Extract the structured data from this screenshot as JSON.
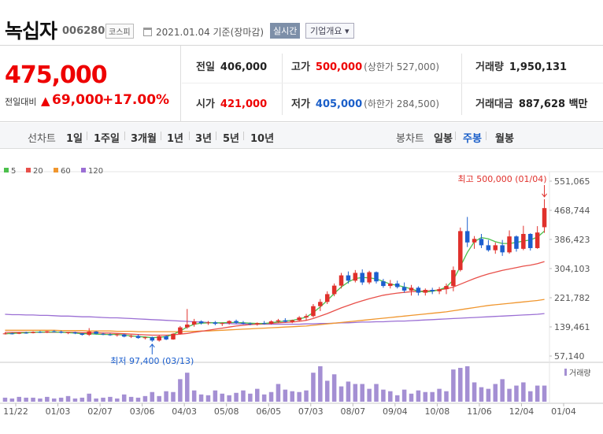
{
  "header": {
    "name": "녹십자",
    "code": "006280",
    "market": "코스피",
    "date": "2021.01.04 기준(장마감)",
    "realtime": "실시간",
    "company_info": "기업개요 ▾"
  },
  "summary": {
    "price": "475,000",
    "change_label": "전일대비",
    "change_arrow": "▲",
    "change_value": "69,000",
    "change_pct": "+17.00%",
    "prev_label": "전일",
    "prev_value": "406,000",
    "open_label": "시가",
    "open_value": "421,000",
    "high_label": "고가",
    "high_value": "500,000",
    "upper_limit": "(상한가 527,000)",
    "low_label": "저가",
    "low_value": "405,000",
    "lower_limit": "(하한가 284,500)",
    "volume_label": "거래량",
    "volume_value": "1,950,131",
    "amount_label": "거래대금",
    "amount_value": "887,628 백만"
  },
  "periods": {
    "line_label": "선차트",
    "line_items": [
      "1일",
      "1주일",
      "3개월",
      "1년",
      "3년",
      "5년",
      "10년"
    ],
    "candle_label": "봉차트",
    "candle_items": [
      "일봉",
      "주봉",
      "월봉"
    ],
    "selected": "주봉"
  },
  "colors": {
    "up": "#e0302b",
    "down": "#1c5fcf",
    "ma5": "#4cc04c",
    "ma20": "#e8504a",
    "ma60": "#f0962e",
    "ma120": "#9b6fd4",
    "volume": "#a48fd3"
  },
  "chart_data": {
    "type": "candlestick",
    "legend": [
      {
        "name": "5",
        "color": "#4cc04c"
      },
      {
        "name": "20",
        "color": "#e8504a"
      },
      {
        "name": "60",
        "color": "#f0962e"
      },
      {
        "name": "120",
        "color": "#9b6fd4"
      }
    ],
    "y_ticks": [
      "551,065",
      "468,744",
      "386,423",
      "304,103",
      "221,782",
      "139,461",
      "57,140"
    ],
    "ylim": [
      57140,
      551065
    ],
    "x_ticks": [
      "11/22",
      "01/03",
      "02/07",
      "03/06",
      "04/03",
      "05/08",
      "06/05",
      "07/03",
      "08/07",
      "09/04",
      "10/08",
      "11/06",
      "12/04",
      "01/04"
    ],
    "high_label": "최고 500,000 (01/04)",
    "low_label": "최저 97,400 (03/13)",
    "volume_label": "거래량",
    "candles": [
      [
        120000,
        124000,
        118000,
        121000
      ],
      [
        121000,
        123000,
        118000,
        120000
      ],
      [
        120000,
        125000,
        119000,
        123000
      ],
      [
        123000,
        126000,
        120000,
        122000
      ],
      [
        122000,
        127000,
        121000,
        125000
      ],
      [
        125000,
        128000,
        122000,
        124000
      ],
      [
        124000,
        128000,
        122000,
        127000
      ],
      [
        127000,
        130000,
        124000,
        126000
      ],
      [
        126000,
        129000,
        121000,
        123000
      ],
      [
        123000,
        125000,
        119000,
        124000
      ],
      [
        124000,
        126000,
        119000,
        121000
      ],
      [
        121000,
        122000,
        115000,
        117000
      ],
      [
        117000,
        136000,
        114000,
        126000
      ],
      [
        126000,
        128000,
        118000,
        120000
      ],
      [
        120000,
        123000,
        116000,
        118000
      ],
      [
        118000,
        121000,
        114000,
        116000
      ],
      [
        116000,
        119000,
        112000,
        118000
      ],
      [
        118000,
        120000,
        110000,
        112000
      ],
      [
        112000,
        117000,
        108000,
        114000
      ],
      [
        114000,
        118000,
        106000,
        108000
      ],
      [
        108000,
        112000,
        104000,
        110000
      ],
      [
        110000,
        112000,
        97400,
        101000
      ],
      [
        101000,
        116000,
        98000,
        113000
      ],
      [
        113000,
        115000,
        102000,
        104000
      ],
      [
        104000,
        122000,
        103000,
        120000
      ],
      [
        120000,
        142000,
        118000,
        138000
      ],
      [
        138000,
        190000,
        134000,
        146000
      ],
      [
        146000,
        162000,
        140000,
        155000
      ],
      [
        155000,
        158000,
        146000,
        150000
      ],
      [
        150000,
        156000,
        145000,
        152000
      ],
      [
        152000,
        156000,
        144000,
        148000
      ],
      [
        148000,
        152000,
        142000,
        150000
      ],
      [
        150000,
        158000,
        146000,
        156000
      ],
      [
        156000,
        160000,
        148000,
        151000
      ],
      [
        151000,
        156000,
        146000,
        149000
      ],
      [
        149000,
        152000,
        144000,
        147000
      ],
      [
        147000,
        152000,
        143000,
        150000
      ],
      [
        150000,
        156000,
        146000,
        148000
      ],
      [
        148000,
        158000,
        146000,
        155000
      ],
      [
        155000,
        162000,
        150000,
        158000
      ],
      [
        158000,
        164000,
        152000,
        154000
      ],
      [
        154000,
        160000,
        150000,
        158000
      ],
      [
        158000,
        170000,
        156000,
        166000
      ],
      [
        166000,
        176000,
        158000,
        170000
      ],
      [
        170000,
        204000,
        166000,
        198000
      ],
      [
        198000,
        218000,
        184000,
        210000
      ],
      [
        210000,
        240000,
        204000,
        232000
      ],
      [
        232000,
        262000,
        226000,
        256000
      ],
      [
        256000,
        292000,
        248000,
        285000
      ],
      [
        285000,
        296000,
        262000,
        270000
      ],
      [
        270000,
        300000,
        265000,
        292000
      ],
      [
        292000,
        302000,
        258000,
        265000
      ],
      [
        265000,
        298000,
        260000,
        294000
      ],
      [
        294000,
        296000,
        262000,
        268000
      ],
      [
        268000,
        275000,
        250000,
        255000
      ],
      [
        255000,
        272000,
        248000,
        262000
      ],
      [
        262000,
        270000,
        248000,
        252000
      ],
      [
        252000,
        265000,
        236000,
        242000
      ],
      [
        242000,
        258000,
        228000,
        250000
      ],
      [
        250000,
        254000,
        228000,
        236000
      ],
      [
        236000,
        248000,
        228000,
        244000
      ],
      [
        244000,
        250000,
        232000,
        240000
      ],
      [
        240000,
        252000,
        232000,
        246000
      ],
      [
        246000,
        262000,
        232000,
        255000
      ],
      [
        255000,
        310000,
        240000,
        300000
      ],
      [
        300000,
        420000,
        296000,
        410000
      ],
      [
        410000,
        450000,
        365000,
        378000
      ],
      [
        378000,
        396000,
        360000,
        388000
      ],
      [
        388000,
        402000,
        362000,
        370000
      ],
      [
        370000,
        385000,
        352000,
        356000
      ],
      [
        356000,
        378000,
        346000,
        370000
      ],
      [
        370000,
        385000,
        340000,
        350000
      ],
      [
        350000,
        412000,
        346000,
        395000
      ],
      [
        395000,
        398000,
        352000,
        360000
      ],
      [
        360000,
        425000,
        356000,
        402000
      ],
      [
        402000,
        404000,
        355000,
        362000
      ],
      [
        362000,
        424000,
        360000,
        406000
      ],
      [
        421000,
        500000,
        405000,
        475000
      ]
    ],
    "ma5": [
      120000,
      121000,
      122000,
      123000,
      124000,
      125000,
      125000,
      125000,
      124000,
      123000,
      122000,
      120000,
      120000,
      119000,
      118000,
      118000,
      118000,
      116000,
      114000,
      112000,
      111000,
      109000,
      110000,
      112000,
      118000,
      128000,
      139000,
      147000,
      150000,
      151000,
      151000,
      151000,
      152000,
      152000,
      151000,
      150000,
      149000,
      149000,
      151000,
      154000,
      156000,
      158000,
      162000,
      167000,
      180000,
      196000,
      214000,
      234000,
      252000,
      266000,
      276000,
      279000,
      278000,
      275000,
      268000,
      260000,
      257000,
      252000,
      247000,
      240000,
      238000,
      240000,
      244000,
      252000,
      272000,
      310000,
      350000,
      380000,
      392000,
      388000,
      380000,
      375000,
      375000,
      378000,
      382000,
      385000,
      393000,
      410000
    ],
    "ma20": [
      124000,
      124000,
      124000,
      124000,
      124000,
      124000,
      124000,
      124000,
      124000,
      124000,
      124000,
      123000,
      123000,
      123000,
      122000,
      122000,
      121000,
      120000,
      119000,
      118000,
      117000,
      116000,
      116000,
      116000,
      117000,
      119000,
      121000,
      124000,
      127000,
      130000,
      133000,
      136000,
      139000,
      142000,
      144000,
      146000,
      147000,
      148000,
      150000,
      151000,
      152000,
      153000,
      155000,
      158000,
      163000,
      170000,
      177000,
      185000,
      193000,
      200000,
      207000,
      213000,
      219000,
      224000,
      229000,
      232000,
      235000,
      237000,
      239000,
      240000,
      241000,
      242000,
      244000,
      247000,
      252000,
      260000,
      268000,
      276000,
      283000,
      289000,
      294000,
      299000,
      303000,
      307000,
      311000,
      314000,
      318000,
      324000
    ],
    "ma60": [
      130000,
      130000,
      130000,
      130000,
      130000,
      130000,
      130000,
      130000,
      129000,
      129000,
      129000,
      129000,
      128000,
      128000,
      128000,
      128000,
      127000,
      127000,
      127000,
      126000,
      126000,
      126000,
      126000,
      126000,
      126000,
      126000,
      127000,
      127000,
      128000,
      128000,
      129000,
      130000,
      131000,
      132000,
      133000,
      134000,
      135000,
      136000,
      137000,
      138000,
      139000,
      140000,
      141000,
      142000,
      144000,
      146000,
      148000,
      150000,
      152000,
      154000,
      156000,
      158000,
      160000,
      162000,
      164000,
      166000,
      168000,
      170000,
      172000,
      174000,
      176000,
      178000,
      180000,
      182000,
      185000,
      188000,
      191000,
      194000,
      197000,
      200000,
      202000,
      204000,
      206000,
      208000,
      210000,
      212000,
      214000,
      217000
    ],
    "ma120": [
      175000,
      174000,
      174000,
      173000,
      173000,
      172000,
      172000,
      171000,
      170000,
      170000,
      169000,
      168000,
      168000,
      167000,
      166000,
      165000,
      165000,
      164000,
      163000,
      162000,
      161000,
      160000,
      159000,
      158000,
      157000,
      156000,
      155000,
      154000,
      153000,
      152000,
      151000,
      150000,
      149000,
      148000,
      148000,
      147000,
      147000,
      147000,
      147000,
      147000,
      147000,
      147000,
      147000,
      148000,
      148000,
      149000,
      149000,
      150000,
      151000,
      151000,
      152000,
      153000,
      153000,
      154000,
      154000,
      155000,
      156000,
      156000,
      157000,
      158000,
      159000,
      160000,
      161000,
      162000,
      163000,
      164000,
      165000,
      166000,
      167000,
      168000,
      169000,
      170000,
      171000,
      172000,
      173000,
      174000,
      175000,
      177000
    ],
    "volume": [
      5,
      4,
      6,
      5,
      5,
      4,
      6,
      4,
      5,
      7,
      4,
      5,
      10,
      4,
      5,
      6,
      4,
      9,
      6,
      5,
      7,
      12,
      7,
      13,
      12,
      28,
      36,
      14,
      9,
      8,
      14,
      10,
      8,
      11,
      14,
      10,
      16,
      9,
      12,
      22,
      15,
      13,
      12,
      14,
      36,
      44,
      26,
      34,
      19,
      25,
      22,
      22,
      16,
      22,
      15,
      13,
      8,
      15,
      10,
      14,
      12,
      12,
      16,
      13,
      40,
      42,
      44,
      24,
      18,
      16,
      22,
      28,
      16,
      20,
      24,
      13,
      20,
      20
    ]
  }
}
